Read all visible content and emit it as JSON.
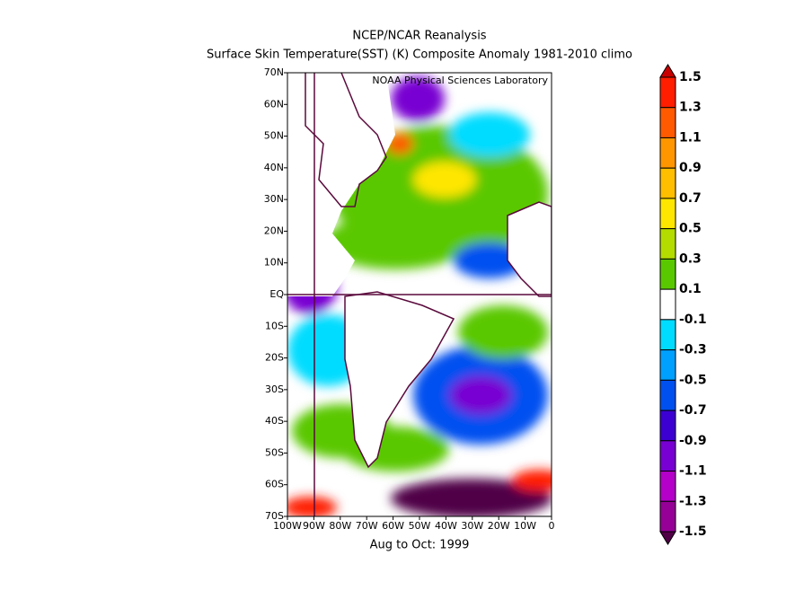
{
  "map": {
    "title": "NCEP/NCAR Reanalysis",
    "subtitle": "Surface Skin Temperature(SST) (K) Composite Anomaly 1981-2010 climo",
    "credit": "NOAA Physical Sciences Laboratory",
    "period": "Aug to Oct: 1999",
    "lon_lim": [
      -100,
      0
    ],
    "lat_lim": [
      -70,
      70
    ],
    "lat_ticks": [
      {
        "value": 70,
        "label": "70N"
      },
      {
        "value": 60,
        "label": "60N"
      },
      {
        "value": 50,
        "label": "50N"
      },
      {
        "value": 40,
        "label": "40N"
      },
      {
        "value": 30,
        "label": "30N"
      },
      {
        "value": 20,
        "label": "20N"
      },
      {
        "value": 10,
        "label": "10N"
      },
      {
        "value": 0,
        "label": "EQ"
      },
      {
        "value": -10,
        "label": "10S"
      },
      {
        "value": -20,
        "label": "20S"
      },
      {
        "value": -30,
        "label": "30S"
      },
      {
        "value": -40,
        "label": "40S"
      },
      {
        "value": -50,
        "label": "50S"
      },
      {
        "value": -60,
        "label": "60S"
      },
      {
        "value": -70,
        "label": "70S"
      }
    ],
    "lon_ticks": [
      {
        "value": -100,
        "label": "100W"
      },
      {
        "value": -90,
        "label": "90W"
      },
      {
        "value": -80,
        "label": "80W"
      },
      {
        "value": -70,
        "label": "70W"
      },
      {
        "value": -60,
        "label": "60W"
      },
      {
        "value": -50,
        "label": "50W"
      },
      {
        "value": -40,
        "label": "40W"
      },
      {
        "value": -30,
        "label": "30W"
      },
      {
        "value": -20,
        "label": "20W"
      },
      {
        "value": -10,
        "label": "10W"
      },
      0
    ],
    "colorbar": {
      "levels": [
        1.5,
        1.3,
        1.1,
        0.9,
        0.7,
        0.5,
        0.3,
        0.1,
        -0.1,
        -0.3,
        -0.5,
        -0.7,
        -0.9,
        -1.1,
        -1.3,
        -1.5
      ],
      "colors": [
        "#c80000",
        "#ff1e00",
        "#ff5a00",
        "#ff9600",
        "#ffbe00",
        "#ffe600",
        "#b4dc00",
        "#5ac800",
        "#ffffff",
        "#00dcff",
        "#00a0ff",
        "#0050f0",
        "#3c00d2",
        "#7800d2",
        "#b400c8",
        "#960096",
        "#500046"
      ]
    }
  }
}
